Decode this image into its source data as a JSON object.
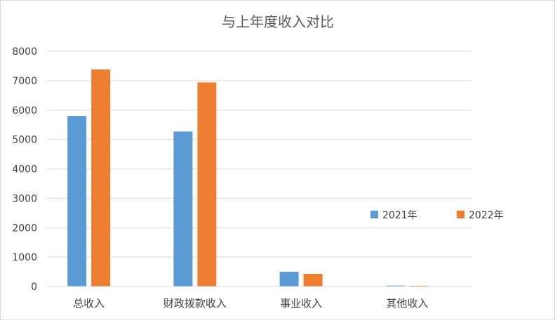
{
  "chart_data": {
    "type": "bar",
    "title": "与上年度收入对比",
    "xlabel": "",
    "ylabel": "",
    "categories": [
      "总收入",
      "财政拨款收入",
      "事业收入",
      "其他收入"
    ],
    "series": [
      {
        "name": "2021年",
        "color": "#5b9bd5",
        "values": [
          5800,
          5270,
          500,
          30
        ]
      },
      {
        "name": "2022年",
        "color": "#ed7d31",
        "values": [
          7380,
          6940,
          430,
          25
        ]
      }
    ],
    "ylim": [
      0,
      8000
    ],
    "yticks": [
      "0",
      "1000",
      "2000",
      "3000",
      "4000",
      "5000",
      "6000",
      "7000",
      "8000"
    ],
    "grid": true,
    "legend": "right"
  }
}
